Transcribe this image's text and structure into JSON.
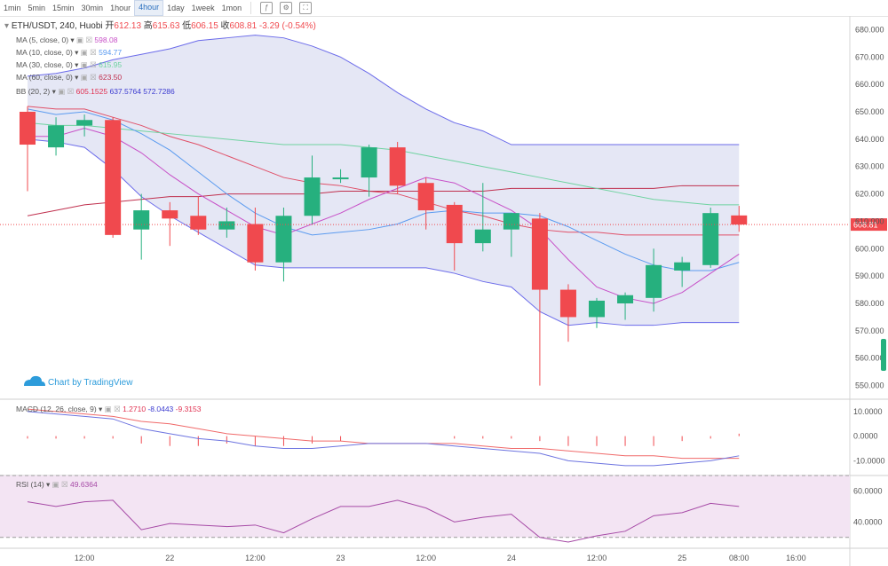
{
  "toolbar": {
    "intervals": [
      "1min",
      "5min",
      "15min",
      "30min",
      "1hour",
      "4hour",
      "1day",
      "1week",
      "1mon"
    ],
    "active_interval": "4hour"
  },
  "header": {
    "symbol": "ETH/USDT, 240, Huobi",
    "open_label": "开",
    "open": "612.13",
    "high_label": "高",
    "high": "615.63",
    "low_label": "低",
    "low": "606.15",
    "close_label": "收",
    "close": "608.81",
    "change": "-3.29 (-0.54%)"
  },
  "legend": [
    {
      "label": "MA (5, close, 0)",
      "value": "598.08",
      "color": "#c74fc7"
    },
    {
      "label": "MA (10, close, 0)",
      "value": "594.77",
      "color": "#5b9bf0"
    },
    {
      "label": "MA (30, close, 0)",
      "value": "615.95",
      "color": "#6fd3a0"
    },
    {
      "label": "MA (60, close, 0)",
      "value": "623.50",
      "color": "#c0304e"
    }
  ],
  "bb_legend": {
    "label": "BB (20, 2)",
    "v1": "605.1525",
    "v2": "637.5764",
    "v3": "572.7286"
  },
  "macd_legend": {
    "label": "MACD (12, 26, close, 9)",
    "v1": "1.2710",
    "v2": "-8.0443",
    "v3": "-9.3153"
  },
  "rsi_legend": {
    "label": "RSI (14)",
    "value": "49.6364"
  },
  "watermark": "Chart by TradingView",
  "price_tag": "608.81",
  "colors": {
    "up": "#26b07e",
    "down": "#f0494e",
    "bb_fill": "#e1e3f3",
    "bb_line": "#6b6bea",
    "rsi_fill": "#f3e4f3",
    "rsi_line": "#a64aa6"
  },
  "chart_data": [
    {
      "type": "candlestick",
      "title": "ETH/USDT, 240, Huobi",
      "x_tick_labels": [
        "12:00",
        "22",
        "12:00",
        "23",
        "12:00",
        "24",
        "12:00",
        "25",
        "08:00",
        "16:00"
      ],
      "ylim": [
        545,
        685
      ],
      "y_ticks": [
        550,
        560,
        570,
        580,
        590,
        600,
        610,
        620,
        630,
        640,
        650,
        660,
        670,
        680
      ],
      "candles": [
        {
          "o": 650,
          "h": 652,
          "l": 621,
          "c": 638
        },
        {
          "o": 637,
          "h": 648,
          "l": 634,
          "c": 645
        },
        {
          "o": 645,
          "h": 649,
          "l": 641,
          "c": 647
        },
        {
          "o": 647,
          "h": 648,
          "l": 604,
          "c": 605
        },
        {
          "o": 607,
          "h": 620,
          "l": 596,
          "c": 614
        },
        {
          "o": 614,
          "h": 617,
          "l": 601,
          "c": 611
        },
        {
          "o": 612,
          "h": 619,
          "l": 605,
          "c": 607
        },
        {
          "o": 607,
          "h": 615,
          "l": 604,
          "c": 610
        },
        {
          "o": 609,
          "h": 615,
          "l": 592,
          "c": 595
        },
        {
          "o": 595,
          "h": 615,
          "l": 588,
          "c": 612
        },
        {
          "o": 612,
          "h": 634,
          "l": 609,
          "c": 626
        },
        {
          "o": 626,
          "h": 629,
          "l": 624,
          "c": 626
        },
        {
          "o": 626,
          "h": 638,
          "l": 619,
          "c": 637
        },
        {
          "o": 637,
          "h": 639,
          "l": 620,
          "c": 623
        },
        {
          "o": 624,
          "h": 626,
          "l": 607,
          "c": 614
        },
        {
          "o": 616,
          "h": 617,
          "l": 592,
          "c": 602
        },
        {
          "o": 602,
          "h": 624,
          "l": 599,
          "c": 607
        },
        {
          "o": 607,
          "h": 613,
          "l": 597,
          "c": 613
        },
        {
          "o": 611,
          "h": 613,
          "l": 550,
          "c": 585
        },
        {
          "o": 585,
          "h": 587,
          "l": 566,
          "c": 575
        },
        {
          "o": 575,
          "h": 582,
          "l": 571,
          "c": 581
        },
        {
          "o": 580,
          "h": 584,
          "l": 574,
          "c": 583
        },
        {
          "o": 582,
          "h": 600,
          "l": 577,
          "c": 594
        },
        {
          "o": 592,
          "h": 597,
          "l": 586,
          "c": 595
        },
        {
          "o": 594,
          "h": 615,
          "l": 593,
          "c": 613
        },
        {
          "o": 612.13,
          "h": 615.63,
          "l": 606.15,
          "c": 608.81
        }
      ],
      "overlays": {
        "bb_upper": [
          663,
          664,
          666,
          669,
          671,
          673,
          676,
          677,
          678,
          677,
          674,
          670,
          664,
          657,
          651,
          646,
          643,
          638,
          638,
          638,
          638,
          638,
          638,
          638,
          638,
          638
        ],
        "bb_middle": [
          652,
          651,
          651,
          648,
          645,
          641,
          638,
          634,
          630,
          626,
          624,
          623,
          621,
          620,
          617,
          614,
          612,
          609,
          607,
          606,
          606,
          605,
          605,
          605,
          605,
          605
        ],
        "bb_lower": [
          640,
          639,
          637,
          629,
          619,
          612,
          606,
          600,
          594,
          593,
          593,
          593,
          593,
          593,
          593,
          591,
          588,
          586,
          577,
          572,
          573,
          572,
          572,
          573,
          573,
          573
        ],
        "ma5": [
          641,
          641,
          644,
          641,
          635,
          627,
          620,
          614,
          608,
          605,
          609,
          613,
          618,
          622,
          626,
          624,
          619,
          614,
          607,
          596,
          586,
          582,
          580,
          584,
          591,
          598
        ],
        "ma10": [
          651,
          649,
          650,
          647,
          642,
          636,
          628,
          620,
          613,
          608,
          605,
          606,
          607,
          609,
          613,
          614,
          613,
          613,
          612,
          608,
          603,
          598,
          594,
          592,
          592,
          595
        ],
        "ma30": [
          646,
          645,
          645,
          644,
          643,
          642,
          641,
          640,
          639,
          638,
          638,
          638,
          637,
          636,
          634,
          632,
          630,
          628,
          626,
          624,
          622,
          620,
          618,
          617,
          616,
          616
        ],
        "ma60": [
          612,
          614,
          616,
          617,
          618,
          619,
          619,
          620,
          620,
          620,
          620,
          621,
          621,
          621,
          621,
          621,
          621,
          622,
          622,
          622,
          622,
          622,
          622,
          623,
          623,
          623
        ]
      }
    },
    {
      "type": "line",
      "title": "MACD (12, 26, close, 9)",
      "ylim": [
        -16,
        15
      ],
      "y_ticks": [
        -10,
        0,
        10
      ],
      "series": [
        {
          "name": "MACD",
          "values": [
            10,
            9,
            8,
            7,
            3,
            1,
            -1,
            -2,
            -4,
            -5,
            -5,
            -4,
            -3,
            -3,
            -3,
            -4,
            -5,
            -6,
            -7,
            -10,
            -11,
            -12,
            -12,
            -11,
            -10,
            -8
          ]
        },
        {
          "name": "Signal",
          "values": [
            11,
            10,
            9,
            8,
            6,
            5,
            3,
            1,
            0,
            -1,
            -2,
            -2,
            -3,
            -3,
            -3,
            -3,
            -4,
            -5,
            -5,
            -6,
            -7,
            -8,
            -8,
            -9,
            -9,
            -9
          ]
        }
      ],
      "histogram": [
        -1,
        -1,
        -1,
        -1,
        -3,
        -4,
        -4,
        -3,
        -4,
        -4,
        -3,
        -2,
        0,
        0,
        0,
        -1,
        -1,
        -1,
        -2,
        -4,
        -4,
        -4,
        -4,
        -2,
        -1,
        1
      ]
    },
    {
      "type": "line",
      "title": "RSI (14)",
      "ylim": [
        23,
        70
      ],
      "y_ticks": [
        40,
        60
      ],
      "band": [
        30,
        70
      ],
      "series": [
        {
          "name": "RSI",
          "values": [
            53,
            50,
            53,
            54,
            35,
            39,
            38,
            37,
            38,
            33,
            42,
            50,
            50,
            54,
            49,
            40,
            43,
            45,
            30,
            27,
            31,
            34,
            44,
            46,
            52,
            50
          ]
        }
      ]
    }
  ]
}
